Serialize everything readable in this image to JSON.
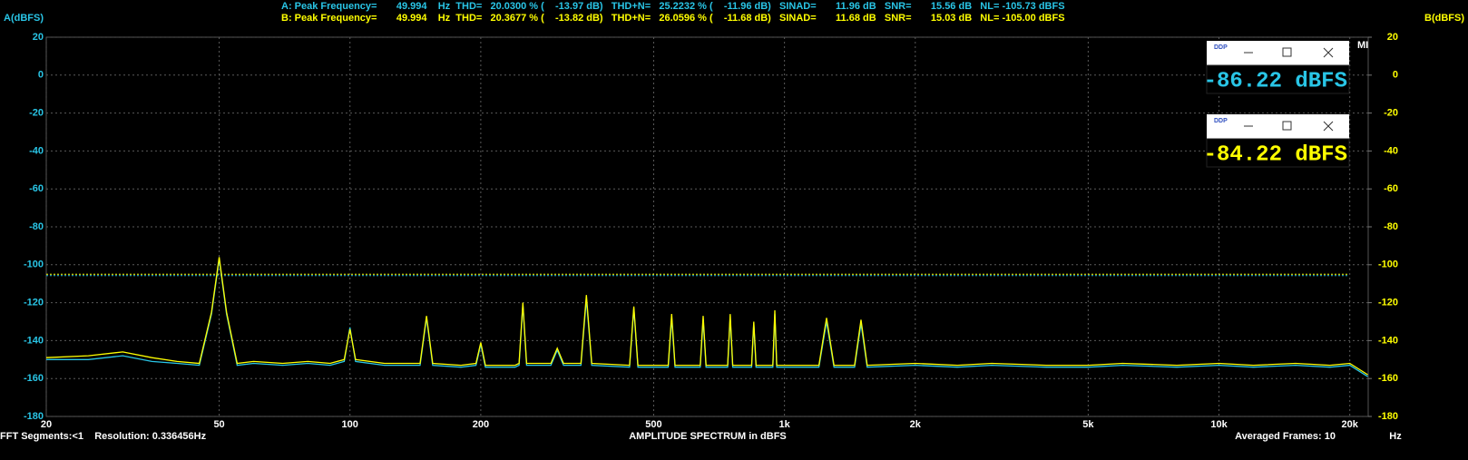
{
  "chart_data": {
    "type": "line",
    "title": "AMPLITUDE SPECTRUM in dBFS",
    "y_label": "A(dBFS)",
    "y2_label": "B(dBFS)",
    "x_label": "Hz",
    "x_scale": "log",
    "grid": true,
    "stats": [
      {
        "text": "A: Peak Frequency=       49.994    Hz  THD=   20.0300 % (    -13.97 dB)   THD+N=   25.2232 % (    -11.96 dB)   SINAD=       11.96 dB   SNR=       15.56 dB   NL= -105.73 dBFS",
        "color": "#29c5e6"
      },
      {
        "text": "B: Peak Frequency=       49.994    Hz  THD=   20.3677 % (    -13.82 dB)   THD+N=   26.0596 % (    -11.68 dB)   SINAD=       11.68 dB   SNR=       15.03 dB   NL= -105.00 dBFS",
        "color": "#ffff00"
      }
    ],
    "footer_left": "FFT Segments:<1    Resolution: 0.336456Hz",
    "footer_right": "Averaged Frames: 10",
    "meter_icon": "DDP",
    "corner_text": "MI",
    "meters": [
      {
        "text": "-86.22 dBFS",
        "color": "#29c5e6"
      },
      {
        "text": "-84.22 dBFS",
        "color": "#ffff00"
      }
    ],
    "noise_lines": [
      {
        "value": -105.73,
        "color": "#29c5e6"
      },
      {
        "value": -105,
        "color": "#ffff00"
      }
    ],
    "xlim": [
      20,
      22050
    ],
    "xticks": [
      20,
      50,
      100,
      200,
      500,
      {
        "value": 1000,
        "label": "1k"
      },
      {
        "value": 2000,
        "label": "2k"
      },
      {
        "value": 5000,
        "label": "5k"
      },
      {
        "value": 10000,
        "label": "10k"
      },
      {
        "value": 20000,
        "label": "20k"
      }
    ],
    "ylim": [
      -180,
      20
    ],
    "yticks": [
      20,
      0,
      -20,
      -40,
      -60,
      -80,
      -100,
      -120,
      -140,
      -160,
      -180
    ],
    "y2lim": [
      -180,
      20
    ],
    "y2ticks": [
      20,
      0,
      -20,
      -40,
      -60,
      -80,
      -100,
      -120,
      -140,
      -160,
      -180
    ],
    "x": [
      20,
      25,
      30,
      35,
      40,
      45,
      48,
      50,
      52,
      55,
      60,
      70,
      80,
      90,
      97,
      100,
      103,
      120,
      145,
      150,
      155,
      180,
      195,
      200,
      205,
      240,
      245,
      250,
      255,
      290,
      300,
      310,
      340,
      350,
      360,
      440,
      450,
      460,
      540,
      550,
      560,
      640,
      650,
      660,
      740,
      750,
      760,
      840,
      850,
      860,
      940,
      950,
      960,
      1200,
      1250,
      1300,
      1450,
      1500,
      1550,
      2000,
      2500,
      3000,
      4000,
      5000,
      6000,
      8000,
      10000,
      12000,
      15000,
      18000,
      20000,
      22000
    ],
    "series": [
      {
        "color": "#29c5e6",
        "values": [
          -150,
          -150,
          -148,
          -151,
          -152,
          -153,
          -126,
          -97,
          -126,
          -153,
          -152,
          -153,
          -152,
          -153,
          -151,
          -133,
          -151,
          -153,
          -153,
          -128,
          -153,
          -154,
          -153,
          -142,
          -154,
          -154,
          -153,
          -121,
          -153,
          -153,
          -145,
          -153,
          -153,
          -118,
          -153,
          -154,
          -123,
          -154,
          -154,
          -128,
          -154,
          -154,
          -129,
          -154,
          -154,
          -128,
          -154,
          -154,
          -131,
          -154,
          -154,
          -126,
          -154,
          -154,
          -130,
          -154,
          -154,
          -131,
          -154,
          -153,
          -154,
          -153,
          -154,
          -154,
          -153,
          -154,
          -153,
          -154,
          -153,
          -154,
          -153,
          -159
        ]
      },
      {
        "color": "#ffff00",
        "axis": "y2",
        "values": [
          -149,
          -148,
          -146,
          -149,
          -151,
          -152,
          -125,
          -96,
          -125,
          -152,
          -151,
          -152,
          -151,
          -152,
          -150,
          -134,
          -150,
          -152,
          -152,
          -127,
          -152,
          -153,
          -152,
          -141,
          -153,
          -153,
          -152,
          -120,
          -152,
          -152,
          -144,
          -152,
          -152,
          -116,
          -152,
          -153,
          -122,
          -153,
          -153,
          -126,
          -153,
          -153,
          -127,
          -153,
          -153,
          -126,
          -153,
          -153,
          -130,
          -153,
          -153,
          -124,
          -153,
          -153,
          -128,
          -153,
          -153,
          -129,
          -153,
          -152,
          -153,
          -152,
          -153,
          -153,
          -152,
          -153,
          -152,
          -153,
          -152,
          -153,
          -152,
          -158
        ]
      }
    ]
  }
}
